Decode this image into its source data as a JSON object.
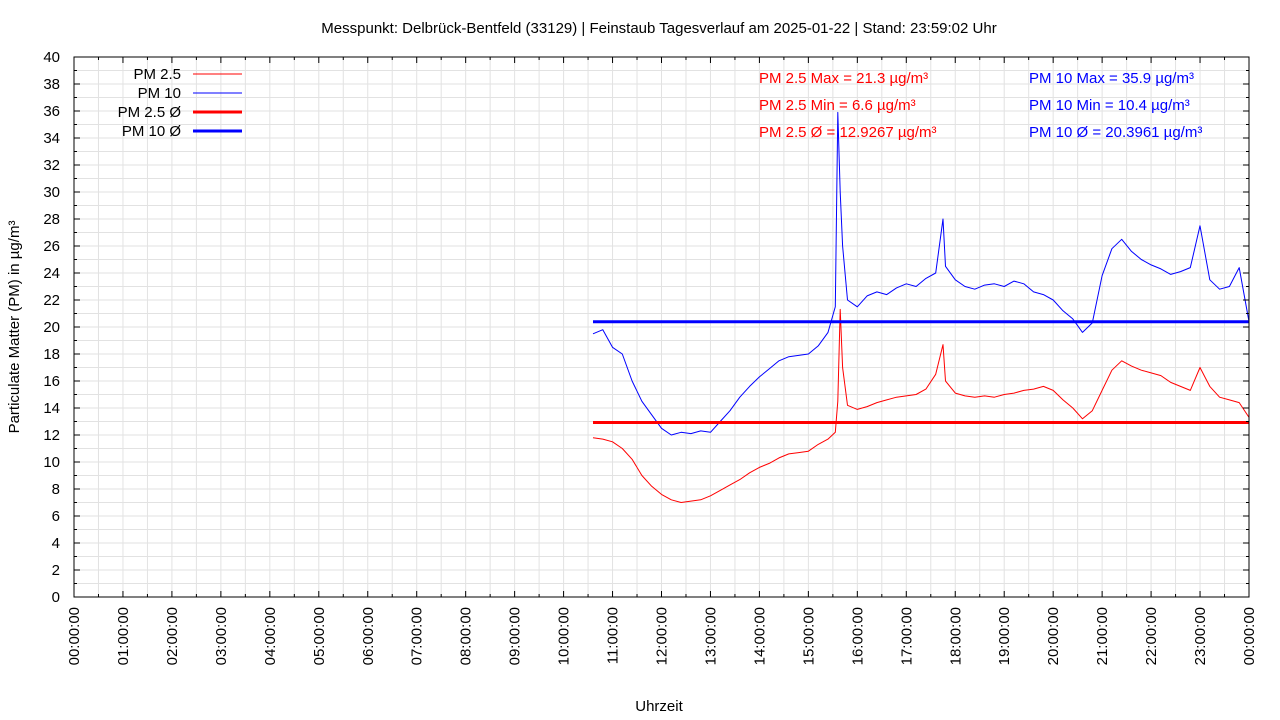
{
  "chart_data": {
    "type": "line",
    "title": "Messpunkt: Delbrück-Bentfeld (33129) | Feinstaub Tagesverlauf am 2025-01-22 | Stand: 23:59:02 Uhr",
    "xlabel": "Uhrzeit",
    "ylabel": "Particulate Matter (PM) in µg/m³",
    "xlim": [
      "00:00:00",
      "24:00:00"
    ],
    "ylim": [
      0,
      40
    ],
    "grid": true,
    "legend_position": "top-left",
    "x_tick_labels": [
      "00:00:00",
      "01:00:00",
      "02:00:00",
      "03:00:00",
      "04:00:00",
      "05:00:00",
      "06:00:00",
      "07:00:00",
      "08:00:00",
      "09:00:00",
      "10:00:00",
      "11:00:00",
      "12:00:00",
      "13:00:00",
      "14:00:00",
      "15:00:00",
      "16:00:00",
      "17:00:00",
      "18:00:00",
      "19:00:00",
      "20:00:00",
      "21:00:00",
      "22:00:00",
      "23:00:00",
      "00:00:00"
    ],
    "y_tick_labels": [
      "0",
      "2",
      "4",
      "6",
      "8",
      "10",
      "12",
      "14",
      "16",
      "18",
      "20",
      "22",
      "24",
      "26",
      "28",
      "30",
      "32",
      "34",
      "36",
      "38",
      "40"
    ],
    "legend": [
      {
        "label": "PM 2.5",
        "color": "#ff0000",
        "style": "thin"
      },
      {
        "label": "PM 10",
        "color": "#0000ff",
        "style": "thin"
      },
      {
        "label": "PM 2.5 Ø",
        "color": "#ff0000",
        "style": "thick"
      },
      {
        "label": "PM 10 Ø",
        "color": "#0000ff",
        "style": "thick"
      }
    ],
    "annotations": {
      "pm25_max": "PM 2.5 Max = 21.3 µg/m³",
      "pm25_min": "PM 2.5 Min = 6.6 µg/m³",
      "pm25_avg": "PM 2.5 Ø = 12.9267 µg/m³",
      "pm10_max": "PM 10 Max = 35.9 µg/m³",
      "pm10_min": "PM 10 Min = 10.4 µg/m³",
      "pm10_avg": "PM 10 Ø = 20.3961 µg/m³"
    },
    "x_units": "hours",
    "series": [
      {
        "name": "PM 2.5",
        "color": "#ff0000",
        "x": [
          10.6,
          10.8,
          11.0,
          11.2,
          11.4,
          11.6,
          11.8,
          12.0,
          12.2,
          12.4,
          12.6,
          12.8,
          13.0,
          13.2,
          13.4,
          13.6,
          13.8,
          14.0,
          14.2,
          14.4,
          14.6,
          14.8,
          15.0,
          15.2,
          15.4,
          15.55,
          15.6,
          15.65,
          15.7,
          15.8,
          16.0,
          16.2,
          16.4,
          16.6,
          16.8,
          17.0,
          17.2,
          17.4,
          17.6,
          17.75,
          17.8,
          18.0,
          18.2,
          18.4,
          18.6,
          18.8,
          19.0,
          19.2,
          19.4,
          19.6,
          19.8,
          20.0,
          20.2,
          20.4,
          20.6,
          20.8,
          21.0,
          21.2,
          21.4,
          21.6,
          21.8,
          22.0,
          22.2,
          22.4,
          22.6,
          22.8,
          23.0,
          23.2,
          23.4,
          23.6,
          23.8,
          24.0
        ],
        "values": [
          11.8,
          11.7,
          11.5,
          11.0,
          10.2,
          9.0,
          8.2,
          7.6,
          7.2,
          7.0,
          7.1,
          7.2,
          7.5,
          7.9,
          8.3,
          8.7,
          9.2,
          9.6,
          9.9,
          10.3,
          10.6,
          10.7,
          10.8,
          11.3,
          11.7,
          12.2,
          14.5,
          21.3,
          17.0,
          14.2,
          13.9,
          14.1,
          14.4,
          14.6,
          14.8,
          14.9,
          15.0,
          15.4,
          16.5,
          18.7,
          16.0,
          15.1,
          14.9,
          14.8,
          14.9,
          14.8,
          15.0,
          15.1,
          15.3,
          15.4,
          15.6,
          15.3,
          14.6,
          14.0,
          13.2,
          13.8,
          15.3,
          16.8,
          17.5,
          17.1,
          16.8,
          16.6,
          16.4,
          15.9,
          15.6,
          15.3,
          17.0,
          15.6,
          14.8,
          14.6,
          14.4,
          13.3
        ]
      },
      {
        "name": "PM 10",
        "color": "#0000ff",
        "x": [
          10.6,
          10.8,
          11.0,
          11.2,
          11.4,
          11.6,
          11.8,
          12.0,
          12.2,
          12.4,
          12.6,
          12.8,
          13.0,
          13.2,
          13.4,
          13.6,
          13.8,
          14.0,
          14.2,
          14.4,
          14.6,
          14.8,
          15.0,
          15.2,
          15.4,
          15.55,
          15.6,
          15.65,
          15.7,
          15.8,
          16.0,
          16.2,
          16.4,
          16.6,
          16.8,
          17.0,
          17.2,
          17.4,
          17.6,
          17.75,
          17.8,
          18.0,
          18.2,
          18.4,
          18.6,
          18.8,
          19.0,
          19.2,
          19.4,
          19.6,
          19.8,
          20.0,
          20.2,
          20.4,
          20.6,
          20.8,
          21.0,
          21.2,
          21.4,
          21.6,
          21.8,
          22.0,
          22.2,
          22.4,
          22.6,
          22.8,
          23.0,
          23.2,
          23.4,
          23.6,
          23.8,
          24.0
        ],
        "values": [
          19.5,
          19.8,
          18.5,
          18.0,
          16.0,
          14.5,
          13.5,
          12.5,
          12.0,
          12.2,
          12.1,
          12.3,
          12.2,
          13.0,
          13.8,
          14.8,
          15.6,
          16.3,
          16.9,
          17.5,
          17.8,
          17.9,
          18.0,
          18.6,
          19.6,
          21.5,
          35.9,
          30.0,
          26.0,
          22.0,
          21.5,
          22.3,
          22.6,
          22.4,
          22.9,
          23.2,
          23.0,
          23.6,
          24.0,
          28.0,
          24.5,
          23.5,
          23.0,
          22.8,
          23.1,
          23.2,
          23.0,
          23.4,
          23.2,
          22.6,
          22.4,
          22.0,
          21.2,
          20.6,
          19.6,
          20.3,
          23.8,
          25.8,
          26.5,
          25.6,
          25.0,
          24.6,
          24.3,
          23.9,
          24.1,
          24.4,
          27.5,
          23.5,
          22.8,
          23.0,
          24.4,
          20.4
        ]
      },
      {
        "name": "PM 2.5 Ø",
        "color": "#ff0000",
        "x": [
          10.6,
          24.0
        ],
        "values": [
          12.9267,
          12.9267
        ]
      },
      {
        "name": "PM 10 Ø",
        "color": "#0000ff",
        "x": [
          10.6,
          24.0
        ],
        "values": [
          20.3961,
          20.3961
        ]
      }
    ]
  }
}
